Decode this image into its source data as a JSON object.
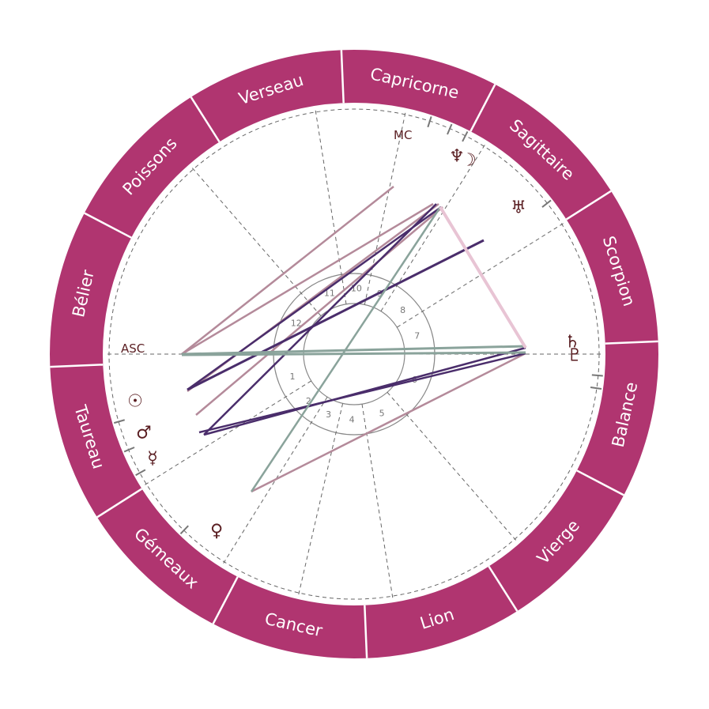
{
  "colors": {
    "ring": "#b03570",
    "ring_divider": "#ffffff",
    "glyph": "#5a1e22",
    "aspect_mauve": "#b48a9a",
    "aspect_purple": "#4a2d6b",
    "aspect_teal": "#8aa39b",
    "aspect_pink": "#e8c4d4"
  },
  "zodiac_signs": [
    "Scorpion",
    "Sagittaire",
    "Capricorne",
    "Verseau",
    "Poissons",
    "Bélier",
    "Taureau",
    "Gémeaux",
    "Cancer",
    "Lion",
    "Vierge",
    "Balance"
  ],
  "houses": [
    "1",
    "2",
    "3",
    "4",
    "5",
    "6",
    "7",
    "8",
    "9",
    "10",
    "11",
    "12"
  ],
  "axes": {
    "asc": "ASC",
    "mc": "MC"
  },
  "planets": [
    {
      "name": "neptune",
      "glyph": "♆"
    },
    {
      "name": "moon",
      "glyph": "☽"
    },
    {
      "name": "uranus",
      "glyph": "♅"
    },
    {
      "name": "saturn",
      "glyph": "♄"
    },
    {
      "name": "pluto",
      "glyph": "♇"
    },
    {
      "name": "sun",
      "glyph": "☉"
    },
    {
      "name": "mars",
      "glyph": "♂"
    },
    {
      "name": "mercury",
      "glyph": "☿"
    },
    {
      "name": "venus",
      "glyph": "♀"
    }
  ]
}
